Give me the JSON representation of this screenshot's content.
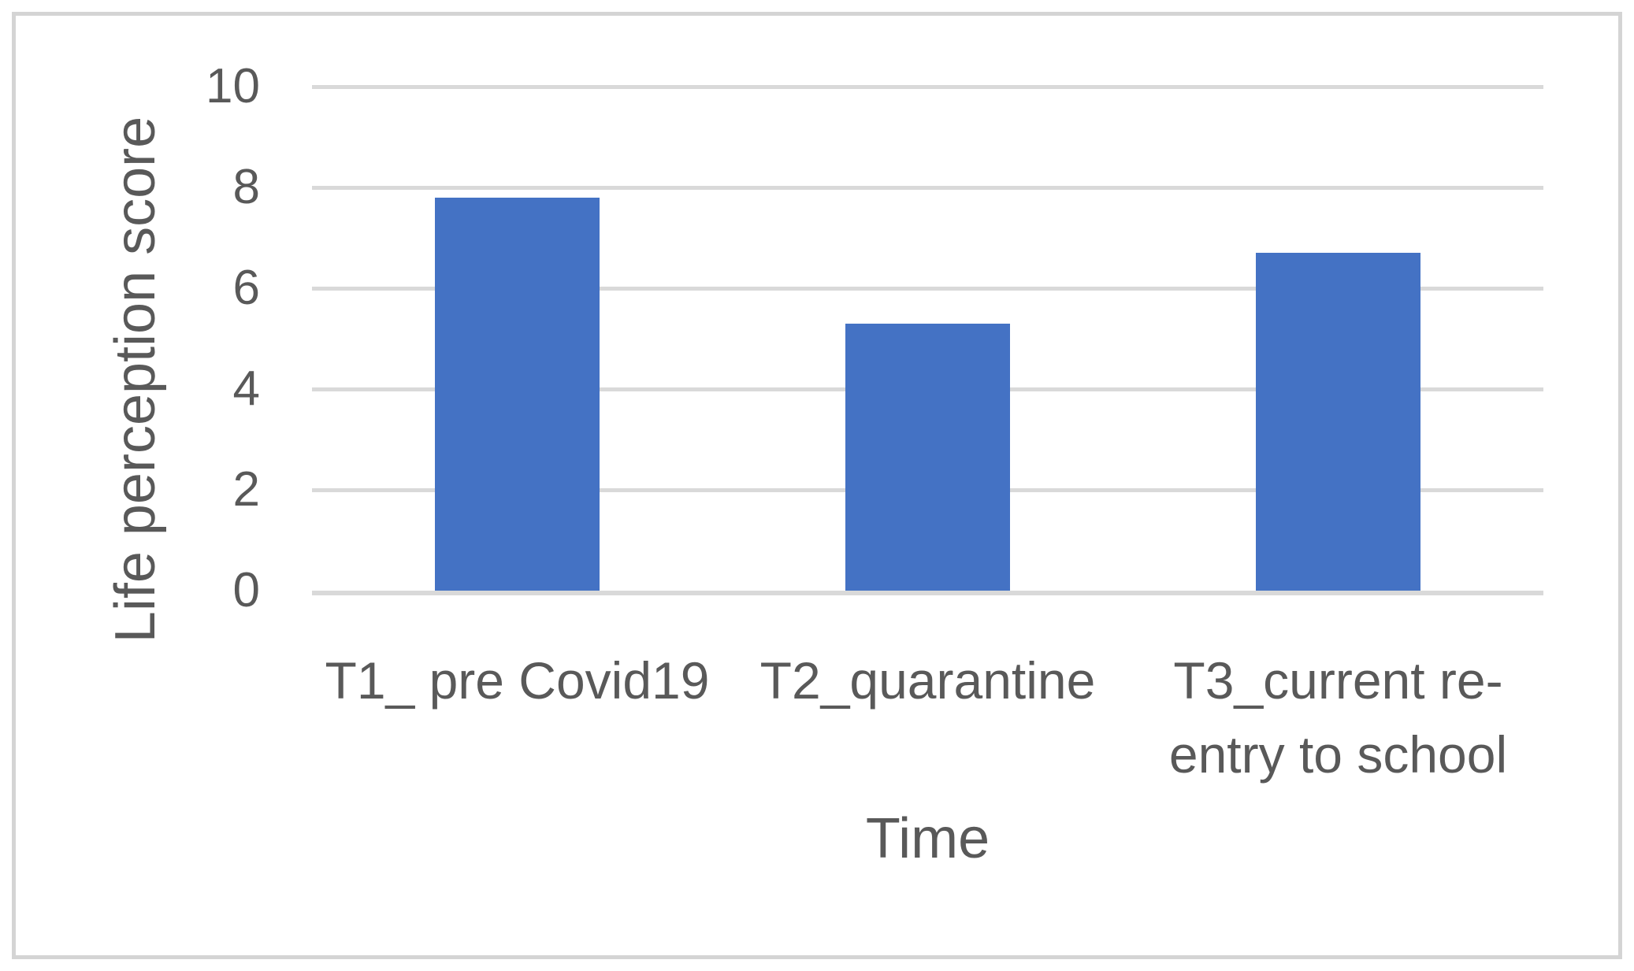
{
  "chart_data": {
    "type": "bar",
    "categories": [
      "T1_ pre Covid19",
      "T2_quarantine",
      "T3_current re-entry to school"
    ],
    "values": [
      7.8,
      5.3,
      6.7
    ],
    "series_name": "Life perception score",
    "title": "",
    "xlabel": "Time",
    "ylabel": "Life perception score",
    "ylim": [
      0,
      10
    ],
    "yticks": [
      0,
      2,
      4,
      6,
      8,
      10
    ],
    "grid": true,
    "legend": false,
    "bar_color": "#4472C4",
    "gridline_color": "#D9D9D9",
    "axis_line_color": "#D9D9D9",
    "text_color": "#595959",
    "frame_border_color": "#D4D4D4",
    "background_color": "#FFFFFF"
  }
}
